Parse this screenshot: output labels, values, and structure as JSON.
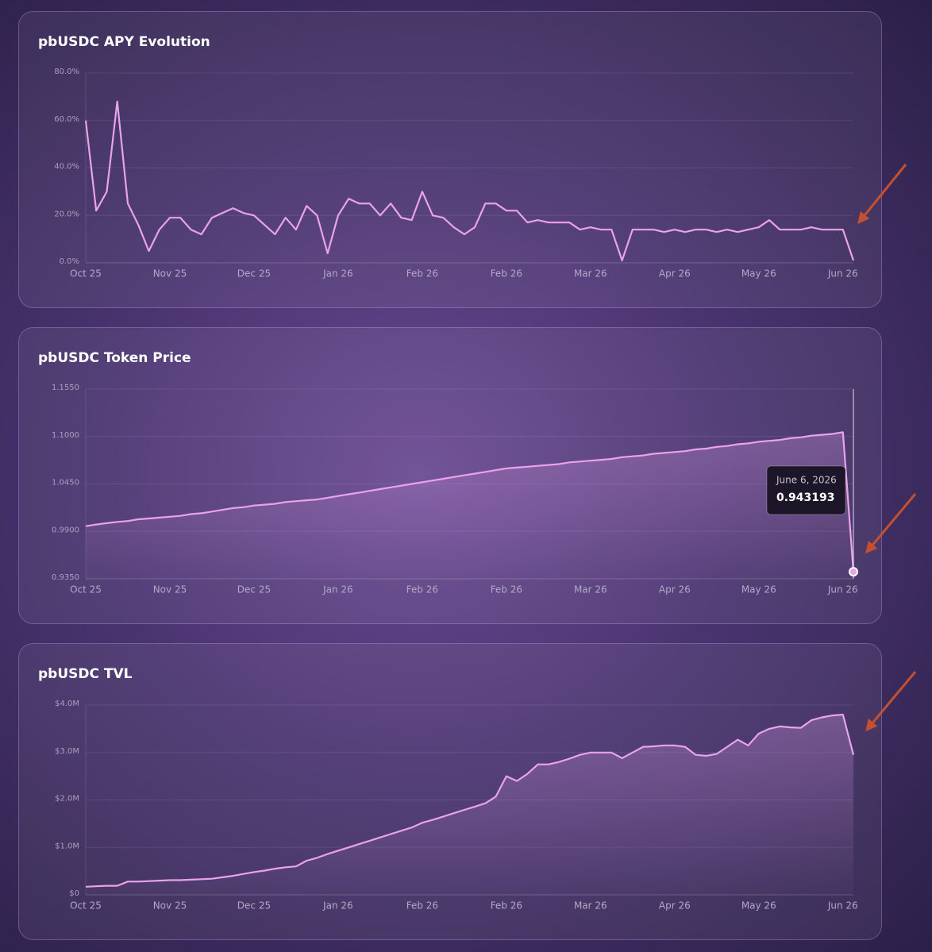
{
  "chart_data": [
    {
      "type": "line",
      "title": "pbUSDC APY Evolution",
      "color": "#eaa2e8",
      "grid": true,
      "categories": [
        "Oct 25",
        null,
        null,
        null,
        null,
        null,
        null,
        null,
        "Nov 25",
        null,
        null,
        null,
        null,
        null,
        null,
        null,
        "Dec 25",
        null,
        null,
        null,
        null,
        null,
        null,
        null,
        "Jan 26",
        null,
        null,
        null,
        null,
        null,
        null,
        null,
        "Feb 26",
        null,
        null,
        null,
        null,
        null,
        null,
        null,
        "Feb 26",
        null,
        null,
        null,
        null,
        null,
        null,
        null,
        "Mar 26",
        null,
        null,
        null,
        null,
        null,
        null,
        null,
        "Apr 26",
        null,
        null,
        null,
        null,
        null,
        null,
        null,
        "May 26",
        null,
        null,
        null,
        null,
        null,
        null,
        null,
        "Jun 26",
        null
      ],
      "values": [
        60,
        22,
        30,
        68,
        25,
        16,
        5,
        14,
        19,
        19,
        14,
        12,
        19,
        21,
        23,
        21,
        20,
        16,
        12,
        19,
        14,
        24,
        20,
        4,
        20,
        27,
        25,
        25,
        20,
        25,
        19,
        18,
        30,
        20,
        19,
        15,
        12,
        15,
        25,
        25,
        22,
        22,
        17,
        18,
        17,
        17,
        17,
        14,
        15,
        14,
        14,
        1,
        14,
        14,
        14,
        13,
        14,
        13,
        14,
        14,
        13,
        14,
        13,
        14,
        15,
        18,
        14,
        14,
        14,
        15,
        14,
        14,
        14,
        1
      ],
      "ylim": [
        0,
        80
      ],
      "yticks": [
        {
          "value": 0,
          "label": "0.0%"
        },
        {
          "value": 20,
          "label": "20.0%"
        },
        {
          "value": 40,
          "label": "40.0%"
        },
        {
          "value": 60,
          "label": "60.0%"
        },
        {
          "value": 80,
          "label": "80.0%"
        }
      ]
    },
    {
      "type": "area",
      "title": "pbUSDC Token Price",
      "color": "#eaa2e8",
      "grid": true,
      "categories": [
        "Oct 25",
        null,
        null,
        null,
        null,
        null,
        null,
        null,
        "Nov 25",
        null,
        null,
        null,
        null,
        null,
        null,
        null,
        "Dec 25",
        null,
        null,
        null,
        null,
        null,
        null,
        null,
        "Jan 26",
        null,
        null,
        null,
        null,
        null,
        null,
        null,
        "Feb 26",
        null,
        null,
        null,
        null,
        null,
        null,
        null,
        "Feb 26",
        null,
        null,
        null,
        null,
        null,
        null,
        null,
        "Mar 26",
        null,
        null,
        null,
        null,
        null,
        null,
        null,
        "Apr 26",
        null,
        null,
        null,
        null,
        null,
        null,
        null,
        "May 26",
        null,
        null,
        null,
        null,
        null,
        null,
        null,
        "Jun 26",
        null
      ],
      "values": [
        0.996,
        0.998,
        0.9995,
        1.001,
        1.002,
        1.004,
        1.005,
        1.006,
        1.007,
        1.008,
        1.01,
        1.011,
        1.013,
        1.015,
        1.017,
        1.018,
        1.02,
        1.021,
        1.022,
        1.024,
        1.025,
        1.026,
        1.027,
        1.029,
        1.031,
        1.033,
        1.035,
        1.037,
        1.039,
        1.041,
        1.043,
        1.045,
        1.047,
        1.049,
        1.051,
        1.053,
        1.055,
        1.057,
        1.059,
        1.061,
        1.063,
        1.064,
        1.065,
        1.066,
        1.067,
        1.068,
        1.07,
        1.071,
        1.072,
        1.073,
        1.074,
        1.076,
        1.077,
        1.078,
        1.08,
        1.081,
        1.082,
        1.083,
        1.085,
        1.086,
        1.088,
        1.089,
        1.091,
        1.092,
        1.094,
        1.095,
        1.096,
        1.098,
        1.099,
        1.101,
        1.102,
        1.103,
        1.105,
        0.943193
      ],
      "ylim": [
        0.935,
        1.155
      ],
      "yticks": [
        {
          "value": 0.935,
          "label": "0.9350"
        },
        {
          "value": 0.99,
          "label": "0.9900"
        },
        {
          "value": 1.045,
          "label": "1.0450"
        },
        {
          "value": 1.1,
          "label": "1.1000"
        },
        {
          "value": 1.155,
          "label": "1.1550"
        }
      ],
      "tooltip": {
        "date": "June 6, 2026"
      }
    },
    {
      "type": "area",
      "title": "pbUSDC TVL",
      "color": "#eaa2e8",
      "grid": true,
      "categories": [
        "Oct 25",
        null,
        null,
        null,
        null,
        null,
        null,
        null,
        "Nov 25",
        null,
        null,
        null,
        null,
        null,
        null,
        null,
        "Dec 25",
        null,
        null,
        null,
        null,
        null,
        null,
        null,
        "Jan 26",
        null,
        null,
        null,
        null,
        null,
        null,
        null,
        "Feb 26",
        null,
        null,
        null,
        null,
        null,
        null,
        null,
        "Feb 26",
        null,
        null,
        null,
        null,
        null,
        null,
        null,
        "Mar 26",
        null,
        null,
        null,
        null,
        null,
        null,
        null,
        "Apr 26",
        null,
        null,
        null,
        null,
        null,
        null,
        null,
        "May 26",
        null,
        null,
        null,
        null,
        null,
        null,
        null,
        "Jun 26",
        null
      ],
      "values": [
        170000,
        180000,
        190000,
        190000,
        280000,
        280000,
        290000,
        300000,
        310000,
        310000,
        320000,
        330000,
        340000,
        370000,
        400000,
        440000,
        480000,
        510000,
        550000,
        580000,
        600000,
        720000,
        780000,
        860000,
        930000,
        1000000,
        1070000,
        1140000,
        1210000,
        1280000,
        1350000,
        1420000,
        1520000,
        1580000,
        1650000,
        1720000,
        1790000,
        1860000,
        1930000,
        2070000,
        2500000,
        2400000,
        2550000,
        2750000,
        2750000,
        2800000,
        2870000,
        2950000,
        3000000,
        3000000,
        3000000,
        2880000,
        3000000,
        3120000,
        3130000,
        3150000,
        3150000,
        3120000,
        2950000,
        2930000,
        2970000,
        3120000,
        3270000,
        3150000,
        3400000,
        3500000,
        3550000,
        3530000,
        3520000,
        3680000,
        3740000,
        3780000,
        3800000,
        2950000
      ],
      "ylim": [
        0,
        4000000
      ],
      "yticks": [
        {
          "value": 0,
          "label": "$0"
        },
        {
          "value": 1000000,
          "label": "$1.0M"
        },
        {
          "value": 2000000,
          "label": "$2.0M"
        },
        {
          "value": 3000000,
          "label": "$3.0M"
        },
        {
          "value": 4000000,
          "label": "$4.0M"
        }
      ]
    }
  ]
}
